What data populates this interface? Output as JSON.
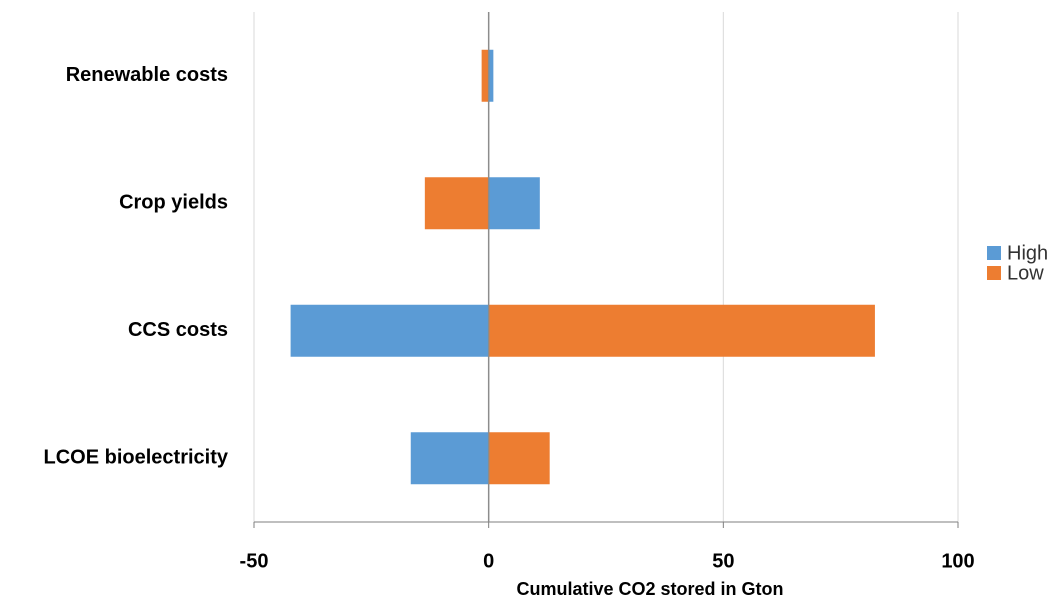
{
  "chart_data": {
    "type": "bar",
    "orientation": "horizontal",
    "categories": [
      "Renewable costs",
      "Crop yields",
      "CCS costs",
      "LCOE bioelectricity"
    ],
    "series": [
      {
        "name": "High",
        "color": "#5b9bd5",
        "values": [
          1,
          10.9,
          -42.2,
          -16.6
        ]
      },
      {
        "name": "Low",
        "color": "#ed7d31",
        "values": [
          -1.5,
          -13.6,
          82.3,
          13
        ]
      }
    ],
    "x_label": "Cumulative CO2 stored in Gton",
    "xlim": [
      -50,
      100
    ],
    "xticks": [
      -50,
      0,
      50,
      100
    ],
    "grid": true,
    "legend": "right"
  }
}
